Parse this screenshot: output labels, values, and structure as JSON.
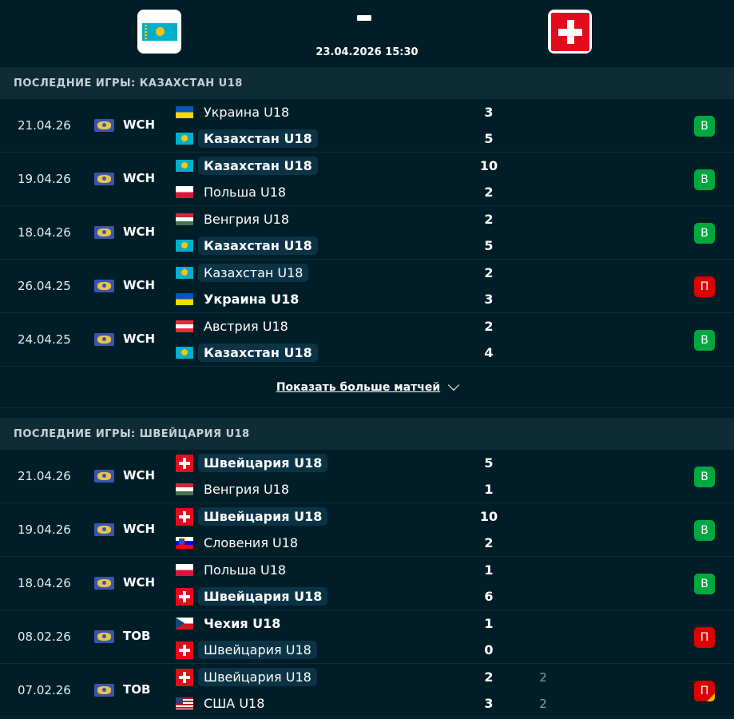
{
  "header": {
    "home_crest": "kazakhstan-flag-icon",
    "away_crest": "switzerland-flag-icon",
    "score_placeholder": "-",
    "datetime": "23.04.2026 15:30"
  },
  "sections": [
    {
      "title": "ПОСЛЕДНИЕ ИГРЫ: КАЗАХСТАН U18",
      "matches": [
        {
          "date": "21.04.26",
          "comp": "WCH",
          "home": {
            "name": "Украина U18",
            "flag": "ua",
            "focus": false,
            "bold": false
          },
          "away": {
            "name": "Казахстан U18",
            "flag": "kz",
            "focus": true,
            "bold": true
          },
          "score_home": "3",
          "score_away": "5",
          "result": "В",
          "result_type": "win"
        },
        {
          "date": "19.04.26",
          "comp": "WCH",
          "home": {
            "name": "Казахстан U18",
            "flag": "kz",
            "focus": true,
            "bold": true
          },
          "away": {
            "name": "Польша U18",
            "flag": "pl",
            "focus": false,
            "bold": false
          },
          "score_home": "10",
          "score_away": "2",
          "result": "В",
          "result_type": "win"
        },
        {
          "date": "18.04.26",
          "comp": "WCH",
          "home": {
            "name": "Венгрия U18",
            "flag": "hu",
            "focus": false,
            "bold": false
          },
          "away": {
            "name": "Казахстан U18",
            "flag": "kz",
            "focus": true,
            "bold": true
          },
          "score_home": "2",
          "score_away": "5",
          "result": "В",
          "result_type": "win"
        },
        {
          "date": "26.04.25",
          "comp": "WCH",
          "home": {
            "name": "Казахстан U18",
            "flag": "kz",
            "focus": true,
            "bold": false
          },
          "away": {
            "name": "Украина U18",
            "flag": "ua",
            "focus": false,
            "bold": true
          },
          "score_home": "2",
          "score_away": "3",
          "result": "П",
          "result_type": "loss"
        },
        {
          "date": "24.04.25",
          "comp": "WCH",
          "home": {
            "name": "Австрия U18",
            "flag": "at",
            "focus": false,
            "bold": false
          },
          "away": {
            "name": "Казахстан U18",
            "flag": "kz",
            "focus": true,
            "bold": true
          },
          "score_home": "2",
          "score_away": "4",
          "result": "В",
          "result_type": "win"
        }
      ],
      "show_more": "Показать больше матчей"
    },
    {
      "title": "ПОСЛЕДНИЕ ИГРЫ: ШВЕЙЦАРИЯ U18",
      "matches": [
        {
          "date": "21.04.26",
          "comp": "WCH",
          "home": {
            "name": "Швейцария U18",
            "flag": "ch",
            "focus": true,
            "bold": true
          },
          "away": {
            "name": "Венгрия U18",
            "flag": "hu",
            "focus": false,
            "bold": false
          },
          "score_home": "5",
          "score_away": "1",
          "result": "В",
          "result_type": "win"
        },
        {
          "date": "19.04.26",
          "comp": "WCH",
          "home": {
            "name": "Швейцария U18",
            "flag": "ch",
            "focus": true,
            "bold": true
          },
          "away": {
            "name": "Словения U18",
            "flag": "si",
            "focus": false,
            "bold": false
          },
          "score_home": "10",
          "score_away": "2",
          "result": "В",
          "result_type": "win"
        },
        {
          "date": "18.04.26",
          "comp": "WCH",
          "home": {
            "name": "Польша U18",
            "flag": "pl",
            "focus": false,
            "bold": false
          },
          "away": {
            "name": "Швейцария U18",
            "flag": "ch",
            "focus": true,
            "bold": true
          },
          "score_home": "1",
          "score_away": "6",
          "result": "В",
          "result_type": "win"
        },
        {
          "date": "08.02.26",
          "comp": "TOB",
          "home": {
            "name": "Чехия U18",
            "flag": "cz",
            "focus": false,
            "bold": true
          },
          "away": {
            "name": "Швейцария U18",
            "flag": "ch",
            "focus": true,
            "bold": false
          },
          "score_home": "1",
          "score_away": "0",
          "result": "П",
          "result_type": "loss"
        },
        {
          "date": "07.02.26",
          "comp": "TOB",
          "home": {
            "name": "Швейцария U18",
            "flag": "ch",
            "focus": true,
            "bold": false
          },
          "away": {
            "name": "США U18",
            "flag": "us",
            "focus": false,
            "bold": false
          },
          "score_home": "2",
          "score_away": "3",
          "sub_home": "2",
          "sub_away": "2",
          "result": "П",
          "result_type": "loss",
          "overtime": true
        }
      ]
    }
  ],
  "colors": {
    "win": "#00a83f",
    "loss": "#dc0000",
    "background": "#001e28",
    "section_header": "#0f2c36"
  }
}
